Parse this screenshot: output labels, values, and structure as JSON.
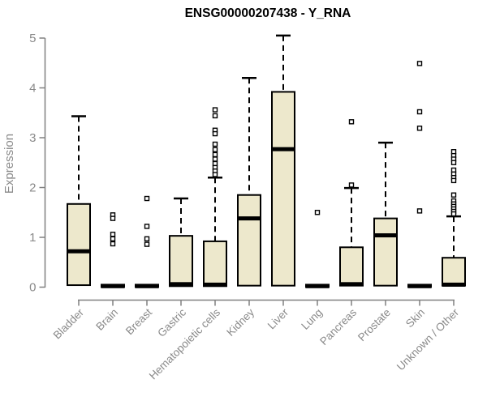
{
  "colors": {
    "background": "#ffffff",
    "box_fill": "#EDE8CC",
    "box_stroke": "#000000",
    "median": "#000000",
    "whisker": "#000000",
    "outlier_stroke": "#000000",
    "axis_line": "#808080",
    "axis_text": "#8a8a8a",
    "title_text": "#000000"
  },
  "chart_data": {
    "type": "boxplot",
    "title": "ENSG00000207438 - Y_RNA",
    "xlabel": "",
    "ylabel": "Expression",
    "ylim": [
      0,
      5
    ],
    "yticks": [
      0,
      1,
      2,
      3,
      4,
      5
    ],
    "grid": false,
    "legend": "none",
    "categories": [
      "Bladder",
      "Brain",
      "Breast",
      "Gastric",
      "Hematopoietic cells",
      "Kidney",
      "Liver",
      "Lung",
      "Pancreas",
      "Prostate",
      "Skin",
      "Unknown / Other"
    ],
    "boxes": [
      {
        "category": "Bladder",
        "whisker_low": 0,
        "q1": 0.04,
        "median": 0.72,
        "q3": 1.67,
        "whisker_high": 3.43,
        "outliers": []
      },
      {
        "category": "Brain",
        "whisker_low": 0,
        "q1": 0.0,
        "median": 0.02,
        "q3": 0.05,
        "whisker_high": 0.05,
        "outliers": [
          1.45,
          1.38,
          1.06,
          0.97,
          0.87
        ]
      },
      {
        "category": "Breast",
        "whisker_low": 0,
        "q1": 0.0,
        "median": 0.02,
        "q3": 0.05,
        "whisker_high": 0.05,
        "outliers": [
          1.78,
          1.22,
          0.97,
          0.86
        ]
      },
      {
        "category": "Gastric",
        "whisker_low": 0,
        "q1": 0.02,
        "median": 0.06,
        "q3": 1.03,
        "whisker_high": 1.78,
        "outliers": []
      },
      {
        "category": "Hematopoietic cells",
        "whisker_low": 0,
        "q1": 0.02,
        "median": 0.05,
        "q3": 0.92,
        "whisker_high": 2.2,
        "outliers": [
          3.56,
          3.44,
          3.15,
          3.08,
          2.87,
          2.76,
          2.66,
          2.57,
          2.48,
          2.4,
          2.33,
          2.26
        ]
      },
      {
        "category": "Kidney",
        "whisker_low": 0,
        "q1": 0.03,
        "median": 1.38,
        "q3": 1.85,
        "whisker_high": 4.2,
        "outliers": []
      },
      {
        "category": "Liver",
        "whisker_low": 0,
        "q1": 0.03,
        "median": 2.77,
        "q3": 3.92,
        "whisker_high": 5.05,
        "outliers": []
      },
      {
        "category": "Lung",
        "whisker_low": 0,
        "q1": 0.0,
        "median": 0.02,
        "q3": 0.05,
        "whisker_high": 0.05,
        "outliers": [
          1.5
        ]
      },
      {
        "category": "Pancreas",
        "whisker_low": 0,
        "q1": 0.03,
        "median": 0.06,
        "q3": 0.8,
        "whisker_high": 1.99,
        "outliers": [
          3.32,
          2.05
        ]
      },
      {
        "category": "Prostate",
        "whisker_low": 0,
        "q1": 0.03,
        "median": 1.04,
        "q3": 1.38,
        "whisker_high": 2.9,
        "outliers": []
      },
      {
        "category": "Skin",
        "whisker_low": 0,
        "q1": 0.0,
        "median": 0.02,
        "q3": 0.05,
        "whisker_high": 0.05,
        "outliers": [
          4.49,
          3.52,
          3.19,
          1.53
        ]
      },
      {
        "category": "Unknown / Other",
        "whisker_low": 0,
        "q1": 0.03,
        "median": 0.05,
        "q3": 0.59,
        "whisker_high": 1.42,
        "outliers": [
          2.72,
          2.64,
          2.57,
          2.5,
          2.35,
          2.27,
          2.2,
          2.14,
          1.85,
          1.73,
          1.67,
          1.62,
          1.57,
          1.52,
          1.47
        ]
      }
    ]
  }
}
